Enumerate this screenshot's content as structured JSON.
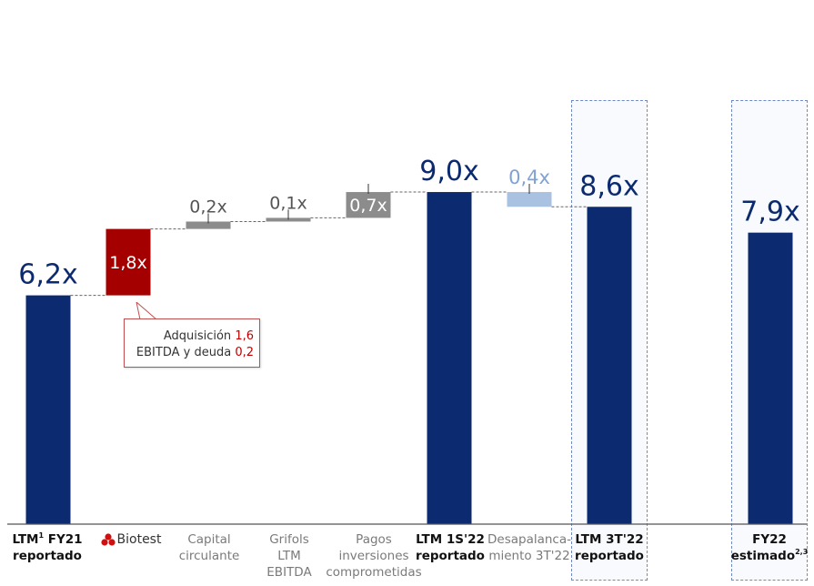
{
  "chart_data": {
    "type": "bar",
    "subtype": "waterfall",
    "title": "",
    "xlabel": "",
    "ylabel": "",
    "categories": [
      "LTM¹ FY21 reportado",
      "Biotest",
      "Capital circulante",
      "Grifols LTM EBITDA",
      "Pagos inversiones comprometidas",
      "LTM 1S'22 reportado",
      "Desapalancamiento 3T'22",
      "LTM 3T'22 reportado",
      "FY22 estimado²,³"
    ],
    "values": [
      6.2,
      1.8,
      0.2,
      0.1,
      0.7,
      9.0,
      -0.4,
      8.6,
      7.9
    ],
    "bar_kind": [
      "total",
      "increase",
      "increase",
      "increase",
      "increase",
      "total",
      "decrease",
      "total",
      "total"
    ],
    "value_labels": [
      "6,2x",
      "1,8x",
      "0,2x",
      "0,1x",
      "0,7x",
      "9,0x",
      "0,4x",
      "8,6x",
      "7,9x"
    ],
    "highlighted_categories": [
      "LTM 3T'22 reportado",
      "FY22 estimado²,³"
    ],
    "colors": {
      "total": "#0b2a6f",
      "biotest": "#a50000",
      "small_increase": "#8c8c8c",
      "decrease": "#a9c2e2",
      "highlight_border": "#6f8ac2"
    },
    "annotation": {
      "line1_text": "Adquisición ",
      "line1_value": "1,6",
      "line2_text": "EBITDA y deuda ",
      "line2_value": "0,2"
    }
  },
  "axis_labels": {
    "c0": {
      "pre": "LTM",
      "sup": "1",
      "post": " FY21",
      "line2": "reportado"
    },
    "c1": {
      "name": "Biotest"
    },
    "c2": {
      "line1": "Capital",
      "line2": "circulante"
    },
    "c3": {
      "line1": "Grifols",
      "line2": "LTM",
      "line3": "EBITDA"
    },
    "c4": {
      "line1": "Pagos",
      "line2": "inversiones",
      "line3": "comprometidas"
    },
    "c5": {
      "line1": "LTM 1S'22",
      "line2": "reportado"
    },
    "c6": {
      "line1": "Desapalanca-",
      "line2": "miento 3T'22"
    },
    "c7": {
      "line1": "LTM 3T'22",
      "line2": "reportado"
    },
    "c8": {
      "line1": "FY22",
      "line2": "estimado",
      "sup": "2,3"
    }
  }
}
